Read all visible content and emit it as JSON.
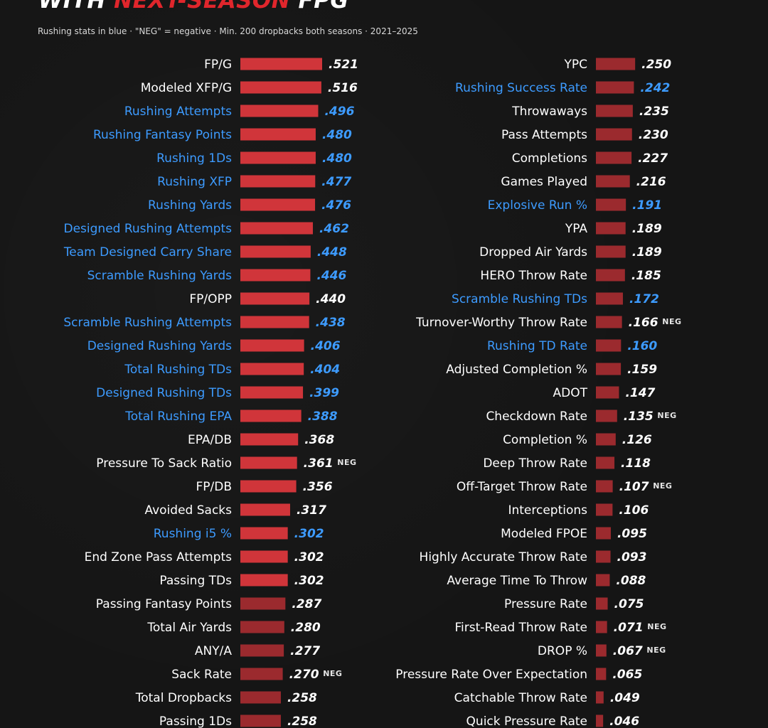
{
  "header": {
    "title_part1": "WITH ",
    "title_part2": "NEXT-SEASON",
    "title_part3": " FPG",
    "subtitle": "Rushing stats in blue · \"NEG\" = negative · Min. 200 dropbacks both seasons · 2021–2025"
  },
  "colors": {
    "background": "#151515",
    "text": "#ffffff",
    "rushing_text": "#3d9bff",
    "bar_strong": "#d0353a",
    "bar_weak": "#9b2a2e",
    "title_accent": "#e0262c"
  },
  "chart_data": [
    {
      "type": "bar",
      "orientation": "horizontal",
      "xlim": [
        0,
        0.521
      ],
      "value_format": "three_decimals_no_leading_zero",
      "neg_tag": "NEG",
      "rows": [
        {
          "label": "FP/G",
          "value": 0.521,
          "rushing": false,
          "neg": false
        },
        {
          "label": "Modeled XFP/G",
          "value": 0.516,
          "rushing": false,
          "neg": false
        },
        {
          "label": "Rushing Attempts",
          "value": 0.496,
          "rushing": true,
          "neg": false
        },
        {
          "label": "Rushing Fantasy Points",
          "value": 0.48,
          "rushing": true,
          "neg": false
        },
        {
          "label": "Rushing 1Ds",
          "value": 0.48,
          "rushing": true,
          "neg": false
        },
        {
          "label": "Rushing XFP",
          "value": 0.477,
          "rushing": true,
          "neg": false
        },
        {
          "label": "Rushing Yards",
          "value": 0.476,
          "rushing": true,
          "neg": false
        },
        {
          "label": "Designed Rushing Attempts",
          "value": 0.462,
          "rushing": true,
          "neg": false
        },
        {
          "label": "Team Designed Carry Share",
          "value": 0.448,
          "rushing": true,
          "neg": false
        },
        {
          "label": "Scramble Rushing Yards",
          "value": 0.446,
          "rushing": true,
          "neg": false
        },
        {
          "label": "FP/OPP",
          "value": 0.44,
          "rushing": false,
          "neg": false
        },
        {
          "label": "Scramble Rushing Attempts",
          "value": 0.438,
          "rushing": true,
          "neg": false
        },
        {
          "label": "Designed Rushing Yards",
          "value": 0.406,
          "rushing": true,
          "neg": false
        },
        {
          "label": "Total Rushing TDs",
          "value": 0.404,
          "rushing": true,
          "neg": false
        },
        {
          "label": "Designed Rushing TDs",
          "value": 0.399,
          "rushing": true,
          "neg": false
        },
        {
          "label": "Total Rushing EPA",
          "value": 0.388,
          "rushing": true,
          "neg": false
        },
        {
          "label": "EPA/DB",
          "value": 0.368,
          "rushing": false,
          "neg": false
        },
        {
          "label": "Pressure To Sack Ratio",
          "value": 0.361,
          "rushing": false,
          "neg": true
        },
        {
          "label": "FP/DB",
          "value": 0.356,
          "rushing": false,
          "neg": false
        },
        {
          "label": "Avoided Sacks",
          "value": 0.317,
          "rushing": false,
          "neg": false
        },
        {
          "label": "Rushing i5 %",
          "value": 0.302,
          "rushing": true,
          "neg": false
        },
        {
          "label": "End Zone Pass Attempts",
          "value": 0.302,
          "rushing": false,
          "neg": false
        },
        {
          "label": "Passing TDs",
          "value": 0.302,
          "rushing": false,
          "neg": false
        },
        {
          "label": "Passing Fantasy Points",
          "value": 0.287,
          "rushing": false,
          "neg": false
        },
        {
          "label": "Total Air Yards",
          "value": 0.28,
          "rushing": false,
          "neg": false
        },
        {
          "label": "ANY/A",
          "value": 0.277,
          "rushing": false,
          "neg": false
        },
        {
          "label": "Sack Rate",
          "value": 0.27,
          "rushing": false,
          "neg": true
        },
        {
          "label": "Total Dropbacks",
          "value": 0.258,
          "rushing": false,
          "neg": false
        },
        {
          "label": "Passing 1Ds",
          "value": 0.258,
          "rushing": false,
          "neg": false
        }
      ]
    },
    {
      "type": "bar",
      "orientation": "horizontal",
      "xlim": [
        0,
        0.521
      ],
      "value_format": "three_decimals_no_leading_zero",
      "neg_tag": "NEG",
      "rows": [
        {
          "label": "YPC",
          "value": 0.25,
          "rushing": false,
          "neg": false
        },
        {
          "label": "Rushing Success Rate",
          "value": 0.242,
          "rushing": true,
          "neg": false
        },
        {
          "label": "Throwaways",
          "value": 0.235,
          "rushing": false,
          "neg": false
        },
        {
          "label": "Pass Attempts",
          "value": 0.23,
          "rushing": false,
          "neg": false
        },
        {
          "label": "Completions",
          "value": 0.227,
          "rushing": false,
          "neg": false
        },
        {
          "label": "Games Played",
          "value": 0.216,
          "rushing": false,
          "neg": false
        },
        {
          "label": "Explosive Run %",
          "value": 0.191,
          "rushing": true,
          "neg": false
        },
        {
          "label": "YPA",
          "value": 0.189,
          "rushing": false,
          "neg": false
        },
        {
          "label": "Dropped Air Yards",
          "value": 0.189,
          "rushing": false,
          "neg": false
        },
        {
          "label": "HERO Throw Rate",
          "value": 0.185,
          "rushing": false,
          "neg": false
        },
        {
          "label": "Scramble Rushing TDs",
          "value": 0.172,
          "rushing": true,
          "neg": false
        },
        {
          "label": "Turnover-Worthy Throw Rate",
          "value": 0.166,
          "rushing": false,
          "neg": true
        },
        {
          "label": "Rushing TD Rate",
          "value": 0.16,
          "rushing": true,
          "neg": false
        },
        {
          "label": "Adjusted Completion %",
          "value": 0.159,
          "rushing": false,
          "neg": false
        },
        {
          "label": "ADOT",
          "value": 0.147,
          "rushing": false,
          "neg": false
        },
        {
          "label": "Checkdown Rate",
          "value": 0.135,
          "rushing": false,
          "neg": true
        },
        {
          "label": "Completion %",
          "value": 0.126,
          "rushing": false,
          "neg": false
        },
        {
          "label": "Deep Throw Rate",
          "value": 0.118,
          "rushing": false,
          "neg": false
        },
        {
          "label": "Off-Target Throw Rate",
          "value": 0.107,
          "rushing": false,
          "neg": true
        },
        {
          "label": "Interceptions",
          "value": 0.106,
          "rushing": false,
          "neg": false
        },
        {
          "label": "Modeled FPOE",
          "value": 0.095,
          "rushing": false,
          "neg": false
        },
        {
          "label": "Highly Accurate Throw Rate",
          "value": 0.093,
          "rushing": false,
          "neg": false
        },
        {
          "label": "Average Time To Throw",
          "value": 0.088,
          "rushing": false,
          "neg": false
        },
        {
          "label": "Pressure Rate",
          "value": 0.075,
          "rushing": false,
          "neg": false
        },
        {
          "label": "First-Read Throw Rate",
          "value": 0.071,
          "rushing": false,
          "neg": true
        },
        {
          "label": "DROP %",
          "value": 0.067,
          "rushing": false,
          "neg": true
        },
        {
          "label": "Pressure Rate Over Expectation",
          "value": 0.065,
          "rushing": false,
          "neg": false
        },
        {
          "label": "Catchable Throw Rate",
          "value": 0.049,
          "rushing": false,
          "neg": false
        },
        {
          "label": "Quick Pressure Rate",
          "value": 0.046,
          "rushing": false,
          "neg": false
        }
      ]
    }
  ]
}
